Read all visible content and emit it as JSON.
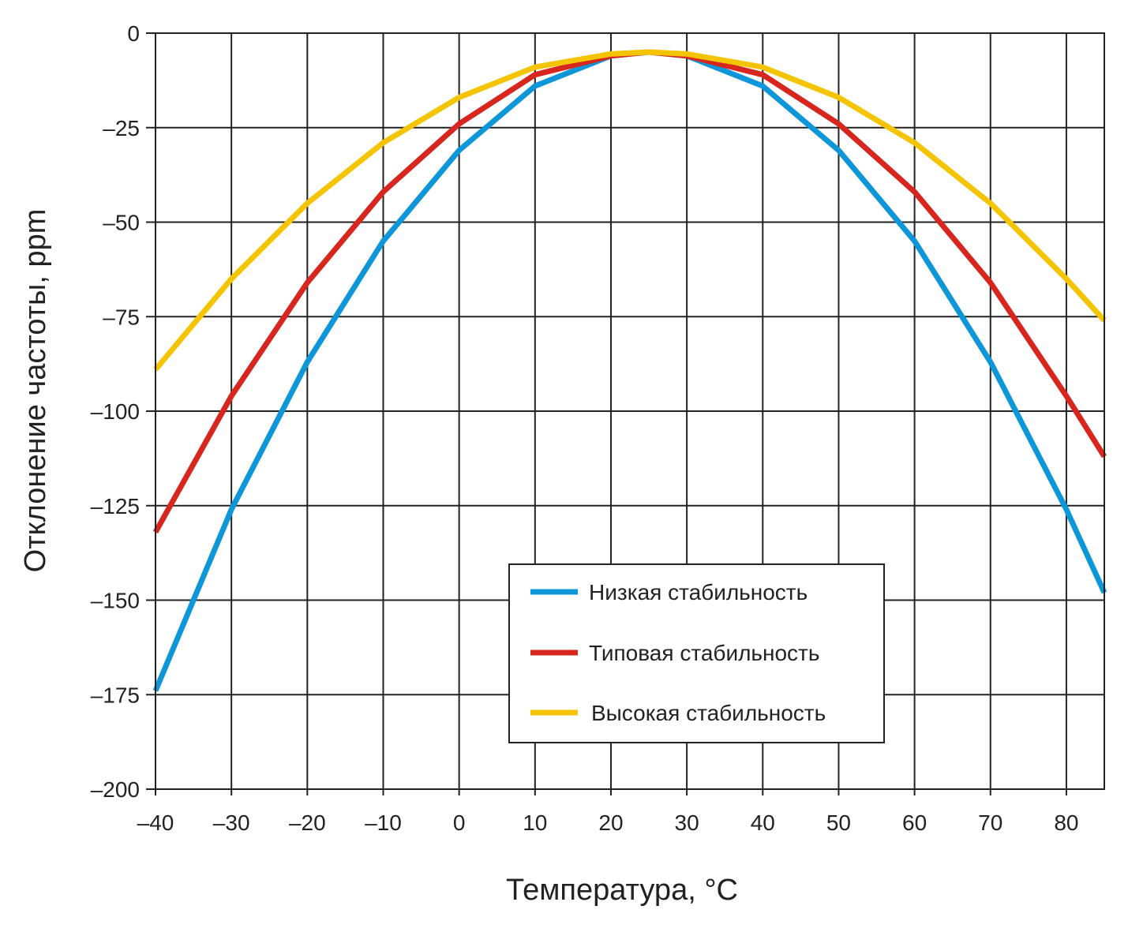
{
  "chart_data": {
    "type": "line",
    "title": "",
    "xlabel": "Температура, °C",
    "ylabel": "Отклонение частоты, ppm",
    "xlim": [
      -40,
      85
    ],
    "ylim": [
      -200,
      0
    ],
    "x_ticks": [
      -40,
      -30,
      -20,
      -10,
      0,
      10,
      20,
      30,
      40,
      50,
      60,
      70,
      80
    ],
    "x_tick_labels": [
      "–40",
      "–30",
      "–20",
      "–10",
      "0",
      "10",
      "20",
      "30",
      "40",
      "50",
      "60",
      "70",
      "80"
    ],
    "y_ticks": [
      0,
      -25,
      -50,
      -75,
      -100,
      -125,
      -150,
      -175,
      -200
    ],
    "y_tick_labels": [
      "0",
      "–25",
      "–50",
      "–75",
      "–100",
      "–125",
      "–150",
      "–175",
      "–200"
    ],
    "grid": true,
    "legend_position": "bottom-right",
    "series": [
      {
        "name": "Низкая стабильность",
        "color": "#0d96d8",
        "x": [
          -40,
          -30,
          -20,
          -10,
          0,
          10,
          20,
          25,
          30,
          40,
          50,
          60,
          70,
          80,
          85
        ],
        "y": [
          -174,
          -126,
          -87,
          -55,
          -31,
          -14,
          -6,
          -5,
          -6,
          -14,
          -31,
          -55,
          -87,
          -126,
          -148
        ]
      },
      {
        "name": "Типовая стабильность",
        "color": "#d7261e",
        "x": [
          -40,
          -30,
          -20,
          -10,
          0,
          10,
          20,
          25,
          30,
          40,
          50,
          60,
          70,
          80,
          85
        ],
        "y": [
          -132,
          -96,
          -66,
          -42,
          -24,
          -11,
          -6,
          -5,
          -6,
          -11,
          -24,
          -42,
          -66,
          -96,
          -112
        ]
      },
      {
        "name": "Высокая стабильность",
        "color": "#f5c400",
        "x": [
          -40,
          -30,
          -20,
          -10,
          0,
          10,
          20,
          25,
          30,
          40,
          50,
          60,
          70,
          80,
          85
        ],
        "y": [
          -89,
          -65,
          -45,
          -29,
          -17,
          -9,
          -5.5,
          -5,
          -5.5,
          -9,
          -17,
          -29,
          -45,
          -65,
          -76
        ]
      }
    ]
  }
}
